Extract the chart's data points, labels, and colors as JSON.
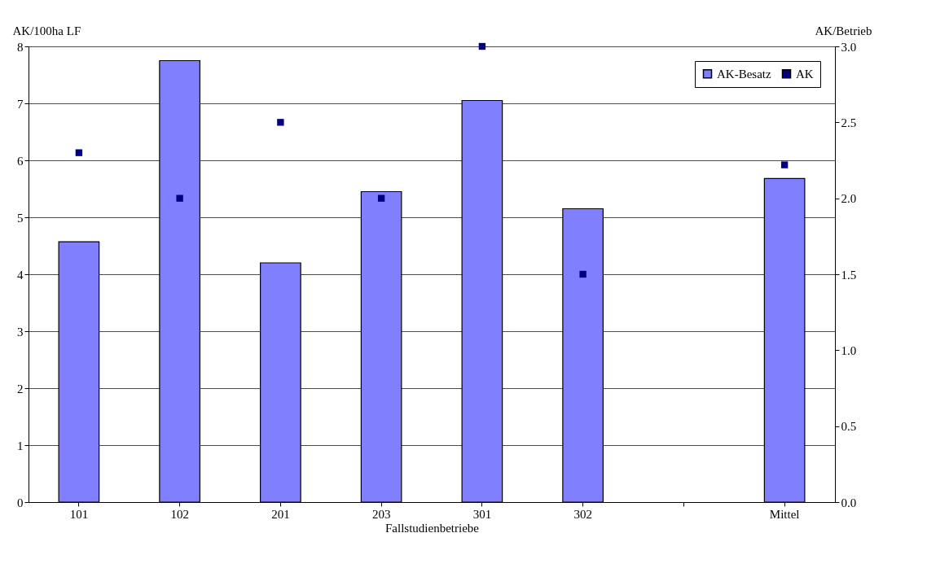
{
  "chart_data": {
    "type": "bar",
    "xlabel": "Fallstudienbetriebe",
    "ylabel": "AK/100ha LF",
    "y2label": "AK/Betrieb",
    "categories": [
      "101",
      "102",
      "201",
      "203",
      "301",
      "302",
      null,
      "Mittel"
    ],
    "series": [
      {
        "name": "AK-Besatz",
        "color": "#8080ff",
        "values": [
          4.57,
          7.75,
          4.2,
          5.45,
          7.05,
          5.15,
          null,
          5.68
        ]
      },
      {
        "name": "AK",
        "type": "scatter",
        "axis": "y2",
        "color": "#000080",
        "marker": "square",
        "values": [
          2.3,
          2.0,
          2.5,
          2.0,
          3.0,
          1.5,
          null,
          2.22
        ]
      }
    ],
    "ylim": [
      0,
      8
    ],
    "yticks": [
      0,
      1,
      2,
      3,
      4,
      5,
      6,
      7,
      8
    ],
    "y2lim": [
      0,
      3
    ],
    "y2ticks": [
      {
        "value": 0,
        "label": "0.0"
      },
      {
        "value": 0.5,
        "label": "0.5"
      },
      {
        "value": 1,
        "label": "1.0"
      },
      {
        "value": 1.5,
        "label": "1.5"
      },
      {
        "value": 2,
        "label": "2.0"
      },
      {
        "value": 2.5,
        "label": "2.5"
      },
      {
        "value": 3,
        "label": "3.0"
      }
    ],
    "grid": "y",
    "legend": "top right"
  }
}
